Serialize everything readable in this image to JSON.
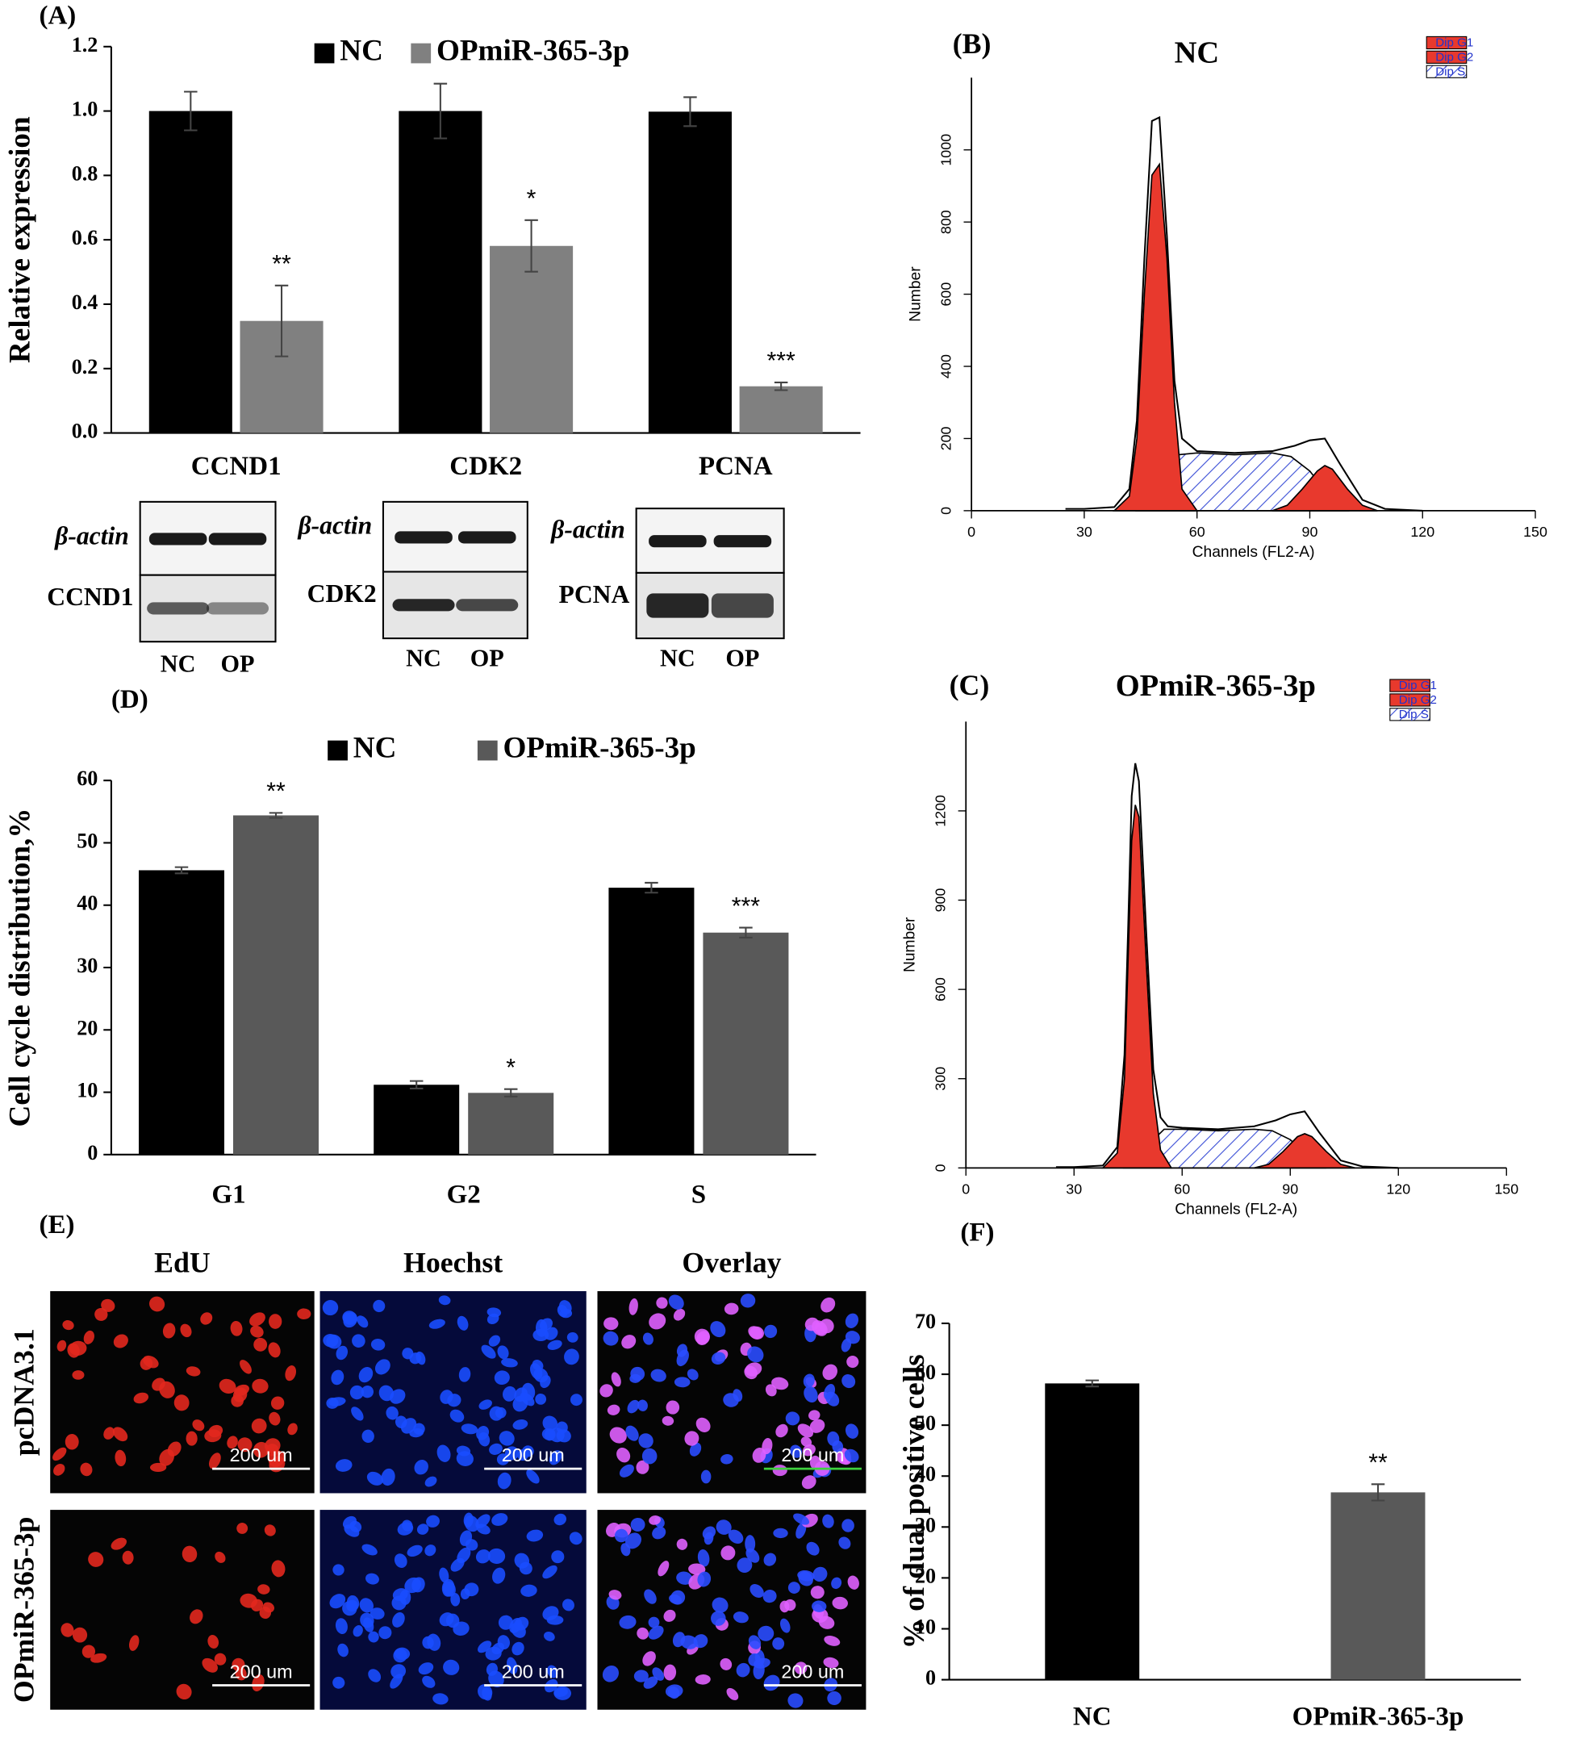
{
  "chart_data": [
    {
      "type": "bar",
      "panel": "(A)",
      "ylabel": "Relative expression",
      "categories": [
        "CCND1",
        "CDK2",
        "PCNA"
      ],
      "series": [
        {
          "name": "NC",
          "color": "#000000",
          "values": [
            1.0,
            1.0,
            0.998
          ],
          "errors": [
            0.06,
            0.085,
            0.045
          ]
        },
        {
          "name": "OPmiR-365-3p",
          "color": "#808080",
          "values": [
            0.348,
            0.581,
            0.145
          ],
          "errors": [
            0.11,
            0.08,
            0.012
          ],
          "annotations": [
            "**",
            "*",
            "***"
          ]
        }
      ],
      "ylim": [
        0,
        1.2
      ],
      "yticks": [
        {
          "value": 0,
          "label": "0.0"
        },
        0.2,
        0.4,
        0.6,
        0.8,
        {
          "value": 1,
          "label": "1.0"
        },
        1.2
      ],
      "legend": "top"
    },
    {
      "type": "flow-histogram",
      "panel": "(B)",
      "title": "NC",
      "xlabel": "Channels (FL2-A)",
      "ylabel": "Number",
      "xlim": [
        0,
        150
      ],
      "xticks": [
        0,
        30,
        60,
        90,
        120,
        150
      ],
      "ylim": [
        0,
        1200
      ],
      "yticks": [
        0,
        200,
        400,
        600,
        800,
        1000
      ],
      "series": [
        {
          "name": "Dip G1",
          "color": "#e8392d",
          "x": [
            38,
            42,
            44,
            46,
            48,
            50,
            52,
            54,
            56,
            60
          ],
          "values": [
            0,
            40,
            200,
            600,
            930,
            960,
            700,
            300,
            60,
            0
          ]
        },
        {
          "name": "Dip G2",
          "color": "#e8392d",
          "x": [
            80,
            84,
            88,
            92,
            94,
            96,
            100,
            104,
            108
          ],
          "values": [
            0,
            15,
            60,
            110,
            125,
            115,
            60,
            15,
            0
          ]
        },
        {
          "name": "Dip S",
          "color": "#3b4fd6",
          "fill": "hatch",
          "x": [
            44,
            50,
            55,
            60,
            70,
            80,
            85,
            90,
            96,
            100
          ],
          "values": [
            0,
            60,
            155,
            160,
            155,
            160,
            150,
            110,
            30,
            0
          ]
        }
      ],
      "total": {
        "color": "#000000",
        "x": [
          25,
          30,
          38,
          42,
          44,
          46,
          48,
          50,
          52,
          54,
          56,
          60,
          70,
          80,
          86,
          90,
          94,
          98,
          104,
          110,
          120
        ],
        "values": [
          5,
          5,
          10,
          60,
          250,
          700,
          1080,
          1090,
          760,
          360,
          200,
          165,
          160,
          165,
          180,
          195,
          200,
          130,
          30,
          5,
          0
        ]
      },
      "legend": "top-right"
    },
    {
      "type": "flow-histogram",
      "panel": "(C)",
      "title": "OPmiR-365-3p",
      "xlabel": "Channels (FL2-A)",
      "ylabel": "Number",
      "xlim": [
        0,
        150
      ],
      "xticks": [
        0,
        30,
        60,
        90,
        120,
        150
      ],
      "ylim": [
        0,
        1500
      ],
      "yticks": [
        0,
        300,
        600,
        900,
        1200
      ],
      "series": [
        {
          "name": "Dip G1",
          "color": "#e8392d",
          "x": [
            38,
            42,
            44,
            45,
            46,
            47,
            48,
            50,
            52,
            54,
            57
          ],
          "values": [
            0,
            50,
            300,
            700,
            1100,
            1220,
            1180,
            700,
            250,
            60,
            0
          ]
        },
        {
          "name": "Dip G2",
          "color": "#e8392d",
          "x": [
            80,
            84,
            88,
            92,
            94,
            96,
            100,
            104,
            108
          ],
          "values": [
            0,
            12,
            55,
            105,
            115,
            105,
            55,
            12,
            0
          ]
        },
        {
          "name": "Dip S",
          "color": "#3b4fd6",
          "fill": "hatch",
          "x": [
            44,
            50,
            55,
            60,
            70,
            80,
            85,
            90,
            96,
            100
          ],
          "values": [
            0,
            70,
            130,
            130,
            125,
            130,
            125,
            95,
            25,
            0
          ]
        }
      ],
      "total": {
        "color": "#000000",
        "x": [
          25,
          30,
          38,
          42,
          44,
          45,
          46,
          47,
          48,
          50,
          52,
          54,
          56,
          60,
          70,
          80,
          86,
          90,
          94,
          98,
          104,
          110,
          120
        ],
        "values": [
          3,
          3,
          8,
          70,
          380,
          800,
          1250,
          1360,
          1300,
          800,
          330,
          170,
          140,
          135,
          130,
          140,
          160,
          180,
          190,
          120,
          25,
          5,
          0
        ]
      },
      "legend": "top-right"
    },
    {
      "type": "bar",
      "panel": "(D)",
      "ylabel": "Cell cycle distribution,%",
      "categories": [
        "G1",
        "G2",
        "S"
      ],
      "series": [
        {
          "name": "NC",
          "color": "#000000",
          "values": [
            45.6,
            11.2,
            42.8
          ],
          "errors": [
            0.5,
            0.6,
            0.8
          ]
        },
        {
          "name": "OPmiR-365-3p",
          "color": "#595959",
          "values": [
            54.4,
            9.9,
            35.6
          ],
          "errors": [
            0.4,
            0.6,
            0.8
          ],
          "annotations": [
            "**",
            "*",
            "***"
          ]
        }
      ],
      "ylim": [
        0,
        60
      ],
      "yticks": [
        0,
        10,
        20,
        30,
        40,
        50,
        60
      ],
      "legend": "top"
    },
    {
      "type": "bar",
      "panel": "(F)",
      "ylabel": "% of dual positive cells",
      "categories": [
        "NC",
        "OPmiR-365-3p"
      ],
      "values": [
        58.2,
        36.8
      ],
      "errors": [
        0.6,
        1.6
      ],
      "colors": [
        "#000000",
        "#595959"
      ],
      "annotations": [
        null,
        "**"
      ],
      "ylim": [
        0,
        70
      ],
      "yticks": [
        0,
        10,
        20,
        30,
        40,
        50,
        60,
        70
      ]
    }
  ],
  "blots": [
    {
      "loading": "β-actin",
      "target": "CCND1",
      "lanes": [
        "NC",
        "OP"
      ]
    },
    {
      "loading": "β-actin",
      "target": "CDK2",
      "lanes": [
        "NC",
        "OP"
      ]
    },
    {
      "loading": "β-actin",
      "target": "PCNA",
      "lanes": [
        "NC",
        "OP"
      ]
    }
  ],
  "images": {
    "panel": "(E)",
    "columns": [
      "EdU",
      "Hoechst",
      "Overlay"
    ],
    "rows": [
      "pcDNA3.1",
      "OPmiR-365-3p"
    ],
    "scale_bar": "200 um"
  }
}
